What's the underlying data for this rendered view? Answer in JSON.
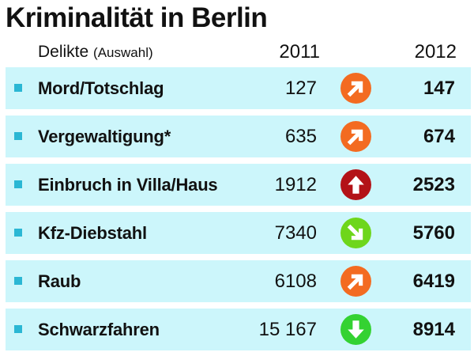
{
  "title": "Kriminalität in Berlin",
  "header": {
    "label_main": "Delikte",
    "label_small": "(Auswahl)",
    "year1": "2011",
    "year2": "2012"
  },
  "colors": {
    "row_bg": "#ccf6fb",
    "bullet": "#2bb7d4",
    "up_orange": "#f36b21",
    "up_red": "#b31217",
    "down_green": "#6ed61b",
    "down_bright_green": "#34d232"
  },
  "rows": [
    {
      "name": "Mord/Totschlag",
      "v2011": "127",
      "v2012": "147",
      "trend_icon": "arrow-up-right-orange"
    },
    {
      "name": "Vergewaltigung*",
      "v2011": "635",
      "v2012": "674",
      "trend_icon": "arrow-up-right-orange"
    },
    {
      "name": "Einbruch in Villa/Haus",
      "v2011": "1912",
      "v2012": "2523",
      "trend_icon": "arrow-up-red"
    },
    {
      "name": "Kfz-Diebstahl",
      "v2011": "7340",
      "v2012": "5760",
      "trend_icon": "arrow-down-right-green"
    },
    {
      "name": "Raub",
      "v2011": "6108",
      "v2012": "6419",
      "trend_icon": "arrow-up-right-orange"
    },
    {
      "name": "Schwarzfahren",
      "v2011": "15 167",
      "v2012": "8914",
      "trend_icon": "arrow-down-green"
    }
  ]
}
